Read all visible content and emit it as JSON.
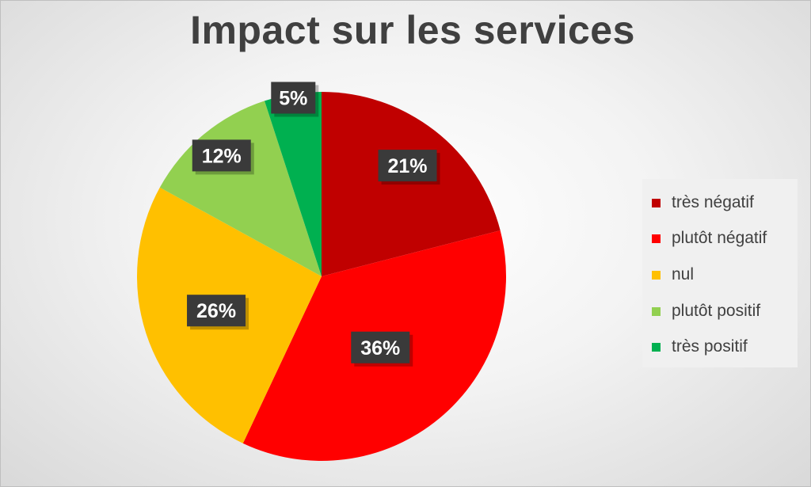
{
  "chart_data": {
    "type": "pie",
    "title": "Impact sur les services",
    "slices": [
      {
        "label": "très négatif",
        "value": 21,
        "display": "21%",
        "color": "#c00000"
      },
      {
        "label": "plutôt négatif",
        "value": 36,
        "display": "36%",
        "color": "#ff0000"
      },
      {
        "label": "nul",
        "value": 26,
        "display": "26%",
        "color": "#ffc000"
      },
      {
        "label": "plutôt positif",
        "value": 12,
        "display": "12%",
        "color": "#92d050"
      },
      {
        "label": "très positif",
        "value": 5,
        "display": "5%",
        "color": "#00b050"
      }
    ],
    "legend_position": "right"
  }
}
